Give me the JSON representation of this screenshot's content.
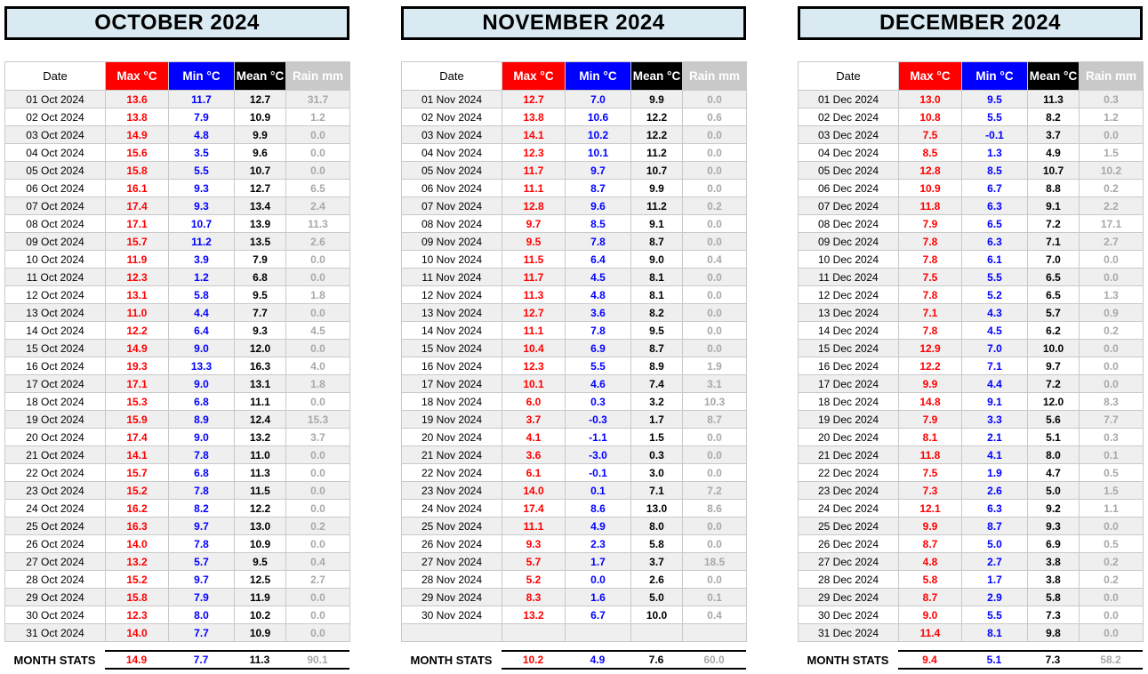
{
  "colors": {
    "max_color": "#ff0000",
    "min_color": "#0000ff",
    "mean_color": "#000000",
    "rain_text": "#a8a8a8",
    "rain_header_bg": "#c9c9c9",
    "title_bg": "#daeaf2"
  },
  "columns": [
    "Date",
    "Max °C",
    "Min °C",
    "Mean °C",
    "Rain mm"
  ],
  "stats_label": "MONTH STATS",
  "months": [
    {
      "title": "OCTOBER 2024",
      "rows": [
        [
          "01 Oct 2024",
          "13.6",
          "11.7",
          "12.7",
          "31.7"
        ],
        [
          "02 Oct 2024",
          "13.8",
          "7.9",
          "10.9",
          "1.2"
        ],
        [
          "03 Oct 2024",
          "14.9",
          "4.8",
          "9.9",
          "0.0"
        ],
        [
          "04 Oct 2024",
          "15.6",
          "3.5",
          "9.6",
          "0.0"
        ],
        [
          "05 Oct 2024",
          "15.8",
          "5.5",
          "10.7",
          "0.0"
        ],
        [
          "06 Oct 2024",
          "16.1",
          "9.3",
          "12.7",
          "6.5"
        ],
        [
          "07 Oct 2024",
          "17.4",
          "9.3",
          "13.4",
          "2.4"
        ],
        [
          "08 Oct 2024",
          "17.1",
          "10.7",
          "13.9",
          "11.3"
        ],
        [
          "09 Oct 2024",
          "15.7",
          "11.2",
          "13.5",
          "2.6"
        ],
        [
          "10 Oct 2024",
          "11.9",
          "3.9",
          "7.9",
          "0.0"
        ],
        [
          "11 Oct 2024",
          "12.3",
          "1.2",
          "6.8",
          "0.0"
        ],
        [
          "12 Oct 2024",
          "13.1",
          "5.8",
          "9.5",
          "1.8"
        ],
        [
          "13 Oct 2024",
          "11.0",
          "4.4",
          "7.7",
          "0.0"
        ],
        [
          "14 Oct 2024",
          "12.2",
          "6.4",
          "9.3",
          "4.5"
        ],
        [
          "15 Oct 2024",
          "14.9",
          "9.0",
          "12.0",
          "0.0"
        ],
        [
          "16 Oct 2024",
          "19.3",
          "13.3",
          "16.3",
          "4.0"
        ],
        [
          "17 Oct 2024",
          "17.1",
          "9.0",
          "13.1",
          "1.8"
        ],
        [
          "18 Oct 2024",
          "15.3",
          "6.8",
          "11.1",
          "0.0"
        ],
        [
          "19 Oct 2024",
          "15.9",
          "8.9",
          "12.4",
          "15.3"
        ],
        [
          "20 Oct 2024",
          "17.4",
          "9.0",
          "13.2",
          "3.7"
        ],
        [
          "21 Oct 2024",
          "14.1",
          "7.8",
          "11.0",
          "0.0"
        ],
        [
          "22 Oct 2024",
          "15.7",
          "6.8",
          "11.3",
          "0.0"
        ],
        [
          "23 Oct 2024",
          "15.2",
          "7.8",
          "11.5",
          "0.0"
        ],
        [
          "24 Oct 2024",
          "16.2",
          "8.2",
          "12.2",
          "0.0"
        ],
        [
          "25 Oct 2024",
          "16.3",
          "9.7",
          "13.0",
          "0.2"
        ],
        [
          "26 Oct 2024",
          "14.0",
          "7.8",
          "10.9",
          "0.0"
        ],
        [
          "27 Oct 2024",
          "13.2",
          "5.7",
          "9.5",
          "0.4"
        ],
        [
          "28 Oct 2024",
          "15.2",
          "9.7",
          "12.5",
          "2.7"
        ],
        [
          "29 Oct 2024",
          "15.8",
          "7.9",
          "11.9",
          "0.0"
        ],
        [
          "30 Oct 2024",
          "12.3",
          "8.0",
          "10.2",
          "0.0"
        ],
        [
          "31 Oct 2024",
          "14.0",
          "7.7",
          "10.9",
          "0.0"
        ]
      ],
      "stats": [
        "14.9",
        "7.7",
        "11.3",
        "90.1"
      ]
    },
    {
      "title": "NOVEMBER 2024",
      "rows": [
        [
          "01 Nov 2024",
          "12.7",
          "7.0",
          "9.9",
          "0.0"
        ],
        [
          "02 Nov 2024",
          "13.8",
          "10.6",
          "12.2",
          "0.6"
        ],
        [
          "03 Nov 2024",
          "14.1",
          "10.2",
          "12.2",
          "0.0"
        ],
        [
          "04 Nov 2024",
          "12.3",
          "10.1",
          "11.2",
          "0.0"
        ],
        [
          "05 Nov 2024",
          "11.7",
          "9.7",
          "10.7",
          "0.0"
        ],
        [
          "06 Nov 2024",
          "11.1",
          "8.7",
          "9.9",
          "0.0"
        ],
        [
          "07 Nov 2024",
          "12.8",
          "9.6",
          "11.2",
          "0.2"
        ],
        [
          "08 Nov 2024",
          "9.7",
          "8.5",
          "9.1",
          "0.0"
        ],
        [
          "09 Nov 2024",
          "9.5",
          "7.8",
          "8.7",
          "0.0"
        ],
        [
          "10 Nov 2024",
          "11.5",
          "6.4",
          "9.0",
          "0.4"
        ],
        [
          "11 Nov 2024",
          "11.7",
          "4.5",
          "8.1",
          "0.0"
        ],
        [
          "12 Nov 2024",
          "11.3",
          "4.8",
          "8.1",
          "0.0"
        ],
        [
          "13 Nov 2024",
          "12.7",
          "3.6",
          "8.2",
          "0.0"
        ],
        [
          "14 Nov 2024",
          "11.1",
          "7.8",
          "9.5",
          "0.0"
        ],
        [
          "15 Nov 2024",
          "10.4",
          "6.9",
          "8.7",
          "0.0"
        ],
        [
          "16 Nov 2024",
          "12.3",
          "5.5",
          "8.9",
          "1.9"
        ],
        [
          "17 Nov 2024",
          "10.1",
          "4.6",
          "7.4",
          "3.1"
        ],
        [
          "18 Nov 2024",
          "6.0",
          "0.3",
          "3.2",
          "10.3"
        ],
        [
          "19 Nov 2024",
          "3.7",
          "-0.3",
          "1.7",
          "8.7"
        ],
        [
          "20 Nov 2024",
          "4.1",
          "-1.1",
          "1.5",
          "0.0"
        ],
        [
          "21 Nov 2024",
          "3.6",
          "-3.0",
          "0.3",
          "0.0"
        ],
        [
          "22 Nov 2024",
          "6.1",
          "-0.1",
          "3.0",
          "0.0"
        ],
        [
          "23 Nov 2024",
          "14.0",
          "0.1",
          "7.1",
          "7.2"
        ],
        [
          "24 Nov 2024",
          "17.4",
          "8.6",
          "13.0",
          "8.6"
        ],
        [
          "25 Nov 2024",
          "11.1",
          "4.9",
          "8.0",
          "0.0"
        ],
        [
          "26 Nov 2024",
          "9.3",
          "2.3",
          "5.8",
          "0.0"
        ],
        [
          "27 Nov 2024",
          "5.7",
          "1.7",
          "3.7",
          "18.5"
        ],
        [
          "28 Nov 2024",
          "5.2",
          "0.0",
          "2.6",
          "0.0"
        ],
        [
          "29 Nov 2024",
          "8.3",
          "1.6",
          "5.0",
          "0.1"
        ],
        [
          "30 Nov 2024",
          "13.2",
          "6.7",
          "10.0",
          "0.4"
        ],
        [
          "",
          "",
          "",
          "",
          ""
        ]
      ],
      "stats": [
        "10.2",
        "4.9",
        "7.6",
        "60.0"
      ]
    },
    {
      "title": "DECEMBER 2024",
      "rows": [
        [
          "01 Dec 2024",
          "13.0",
          "9.5",
          "11.3",
          "0.3"
        ],
        [
          "02 Dec 2024",
          "10.8",
          "5.5",
          "8.2",
          "1.2"
        ],
        [
          "03 Dec 2024",
          "7.5",
          "-0.1",
          "3.7",
          "0.0"
        ],
        [
          "04 Dec 2024",
          "8.5",
          "1.3",
          "4.9",
          "1.5"
        ],
        [
          "05 Dec 2024",
          "12.8",
          "8.5",
          "10.7",
          "10.2"
        ],
        [
          "06 Dec 2024",
          "10.9",
          "6.7",
          "8.8",
          "0.2"
        ],
        [
          "07 Dec 2024",
          "11.8",
          "6.3",
          "9.1",
          "2.2"
        ],
        [
          "08 Dec 2024",
          "7.9",
          "6.5",
          "7.2",
          "17.1"
        ],
        [
          "09 Dec 2024",
          "7.8",
          "6.3",
          "7.1",
          "2.7"
        ],
        [
          "10 Dec 2024",
          "7.8",
          "6.1",
          "7.0",
          "0.0"
        ],
        [
          "11 Dec 2024",
          "7.5",
          "5.5",
          "6.5",
          "0.0"
        ],
        [
          "12 Dec 2024",
          "7.8",
          "5.2",
          "6.5",
          "1.3"
        ],
        [
          "13 Dec 2024",
          "7.1",
          "4.3",
          "5.7",
          "0.9"
        ],
        [
          "14 Dec 2024",
          "7.8",
          "4.5",
          "6.2",
          "0.2"
        ],
        [
          "15 Dec 2024",
          "12.9",
          "7.0",
          "10.0",
          "0.0"
        ],
        [
          "16 Dec 2024",
          "12.2",
          "7.1",
          "9.7",
          "0.0"
        ],
        [
          "17 Dec 2024",
          "9.9",
          "4.4",
          "7.2",
          "0.0"
        ],
        [
          "18 Dec 2024",
          "14.8",
          "9.1",
          "12.0",
          "8.3"
        ],
        [
          "19 Dec 2024",
          "7.9",
          "3.3",
          "5.6",
          "7.7"
        ],
        [
          "20 Dec 2024",
          "8.1",
          "2.1",
          "5.1",
          "0.3"
        ],
        [
          "21 Dec 2024",
          "11.8",
          "4.1",
          "8.0",
          "0.1"
        ],
        [
          "22 Dec 2024",
          "7.5",
          "1.9",
          "4.7",
          "0.5"
        ],
        [
          "23 Dec 2024",
          "7.3",
          "2.6",
          "5.0",
          "1.5"
        ],
        [
          "24 Dec 2024",
          "12.1",
          "6.3",
          "9.2",
          "1.1"
        ],
        [
          "25 Dec 2024",
          "9.9",
          "8.7",
          "9.3",
          "0.0"
        ],
        [
          "26 Dec 2024",
          "8.7",
          "5.0",
          "6.9",
          "0.5"
        ],
        [
          "27 Dec 2024",
          "4.8",
          "2.7",
          "3.8",
          "0.2"
        ],
        [
          "28 Dec 2024",
          "5.8",
          "1.7",
          "3.8",
          "0.2"
        ],
        [
          "29 Dec 2024",
          "8.7",
          "2.9",
          "5.8",
          "0.0"
        ],
        [
          "30 Dec 2024",
          "9.0",
          "5.5",
          "7.3",
          "0.0"
        ],
        [
          "31 Dec 2024",
          "11.4",
          "8.1",
          "9.8",
          "0.0"
        ]
      ],
      "stats": [
        "9.4",
        "5.1",
        "7.3",
        "58.2"
      ]
    }
  ]
}
